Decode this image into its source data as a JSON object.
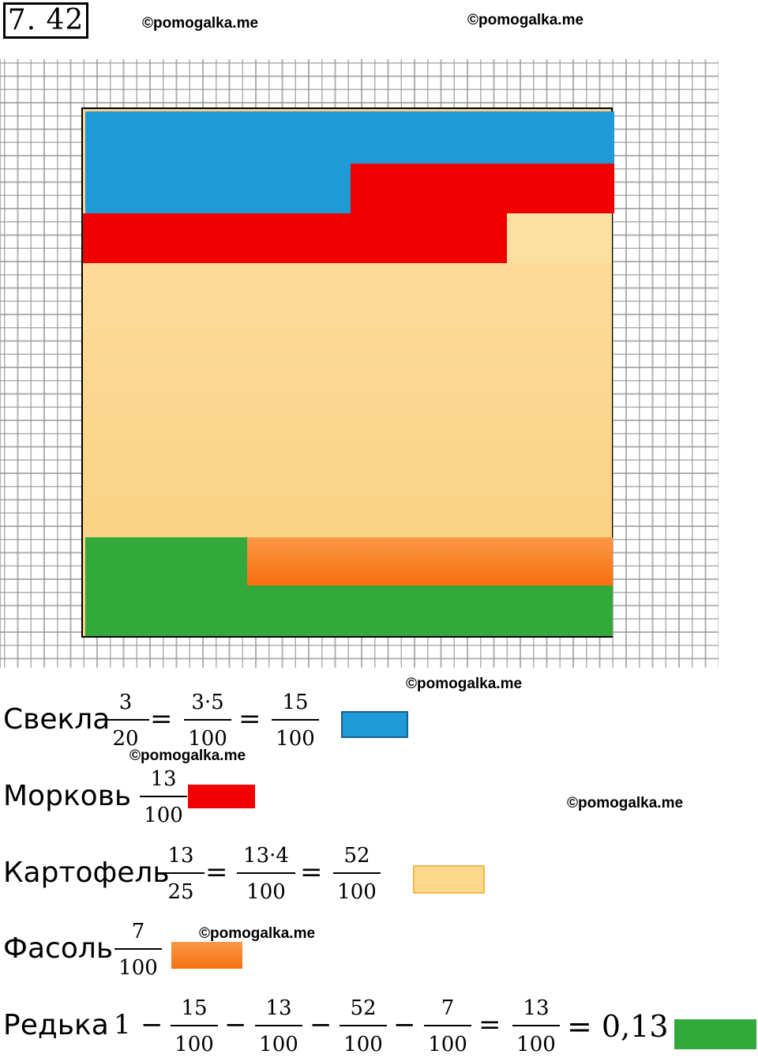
{
  "task": {
    "number": "7. 42"
  },
  "watermarks": [
    "©pomogalka.me",
    "©pomogalka.me",
    "©pomogalka.me",
    "©pomogalka.me",
    "©pomogalka.me",
    "©pomogalka.me"
  ],
  "legend_rows": [
    {
      "label": "Свекла",
      "fractions": [
        [
          "3",
          "20"
        ],
        [
          "3·5",
          "100"
        ],
        [
          "15",
          "100"
        ]
      ],
      "swatch_color": "#1e9ad6"
    },
    {
      "label": "Морковь",
      "fractions": [
        [
          "13",
          "100"
        ]
      ],
      "swatch_color": "#f00000"
    },
    {
      "label": "Картофель",
      "fractions": [
        [
          "13",
          "25"
        ],
        [
          "13·4",
          "100"
        ],
        [
          "52",
          "100"
        ]
      ],
      "swatch_color": "#fdd78a"
    },
    {
      "label": "Фасоль",
      "fractions": [
        [
          "7",
          "100"
        ]
      ],
      "swatch_color": "#fa7b1c"
    },
    {
      "label": "Редька",
      "one": "1",
      "fractions": [
        [
          "15",
          "100"
        ],
        [
          "13",
          "100"
        ],
        [
          "52",
          "100"
        ],
        [
          "7",
          "100"
        ],
        [
          "13",
          "100"
        ]
      ],
      "result": "= 0,13",
      "swatch_color": "#33a93c"
    }
  ],
  "operators": {
    "eq": "=",
    "minus": "−"
  }
}
